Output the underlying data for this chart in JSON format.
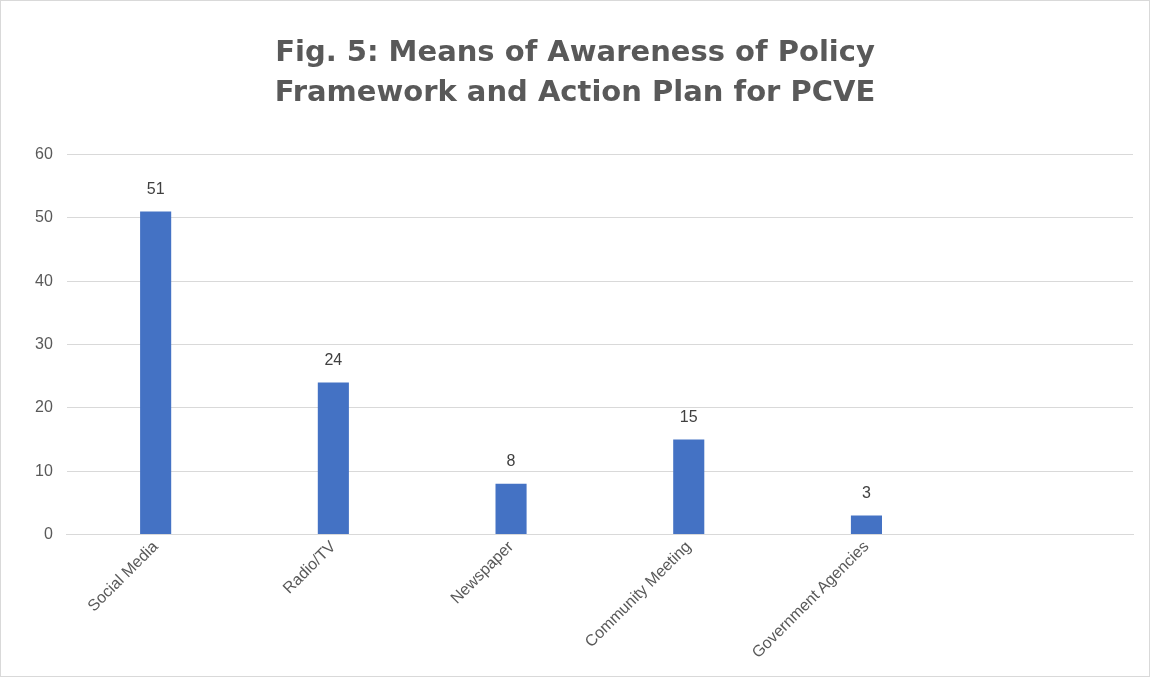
{
  "chart_data": {
    "type": "bar",
    "title": "Fig. 5: Means of Awareness of Policy Framework and Action Plan for PCVE",
    "categories": [
      "Social Media",
      "Radio/TV",
      "Newspaper",
      "Community Meeting",
      "Government Agencies",
      null
    ],
    "values": [
      51,
      24,
      8,
      15,
      3,
      null
    ],
    "color": "#4472c4",
    "ylim": [
      0,
      60
    ],
    "yticks": [
      0,
      10,
      20,
      30,
      40,
      50,
      60
    ],
    "grid": "y",
    "data_labels": true,
    "legend": false
  }
}
